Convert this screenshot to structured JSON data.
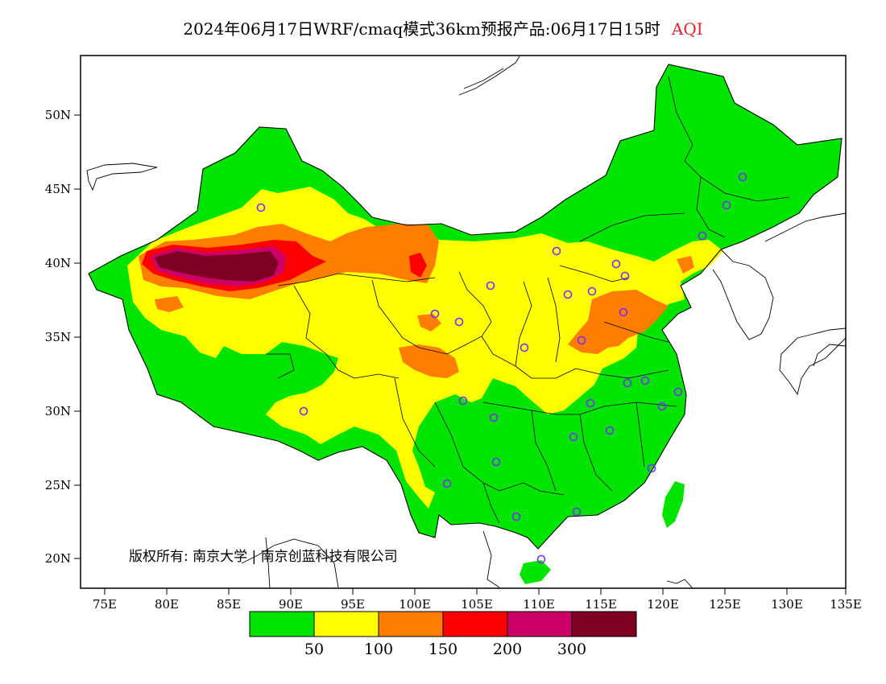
{
  "title": {
    "main": "2024年06月17日WRF/cmaq模式36km预报产品:06月17日15时",
    "variable": "AQI"
  },
  "map": {
    "lat_labels": [
      "50N",
      "45N",
      "40N",
      "35N",
      "30N",
      "25N",
      "20N"
    ],
    "lon_labels": [
      "75E",
      "80E",
      "85E",
      "90E",
      "95E",
      "100E",
      "105E",
      "110E",
      "115E",
      "120E",
      "125E",
      "130E",
      "135E"
    ],
    "copyright": "版权所有: 南京大学 | 南京创蓝科技有限公司"
  },
  "colorbar": {
    "colors": [
      "#00e400",
      "#ffff00",
      "#ff7e00",
      "#ff0000",
      "#cc0066",
      "#7e0023"
    ],
    "labels": [
      "50",
      "100",
      "150",
      "200",
      "300"
    ]
  }
}
